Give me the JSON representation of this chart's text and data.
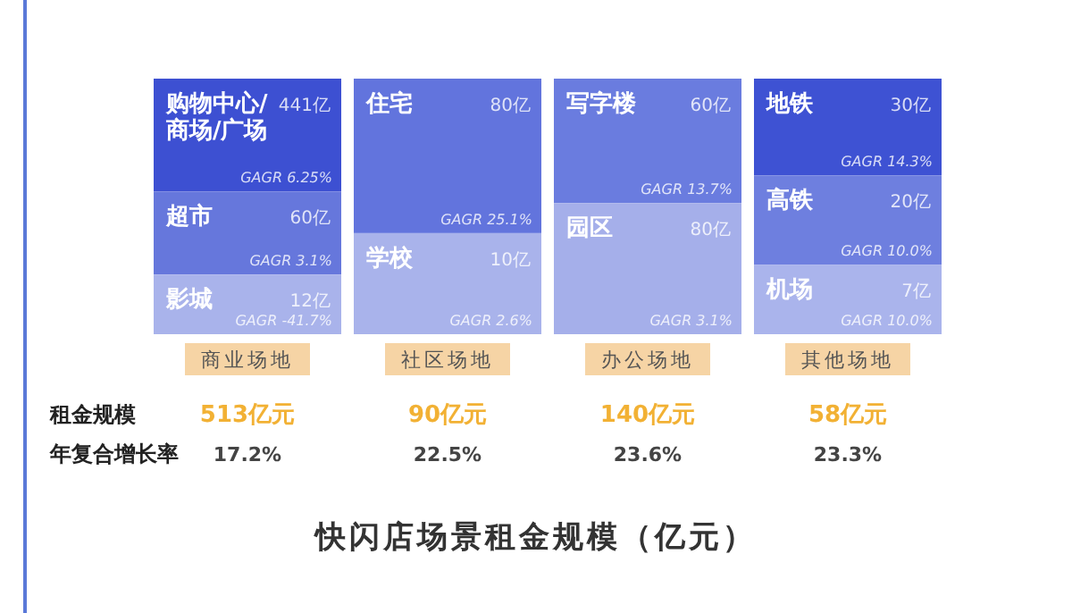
{
  "chart_data": [
    {
      "type": "other",
      "xlabel": "商业场地",
      "categories": [
        "购物中心/商场/广场",
        "超市",
        "影城"
      ],
      "values": [
        441,
        60,
        12
      ],
      "value_labels": [
        "441亿",
        "60亿",
        "12亿"
      ],
      "colors": [
        "#3d50d2",
        "#6677dc",
        "#a9b3eb"
      ],
      "annotations": [
        "GAGR 6.25%",
        "GAGR 3.1%",
        "GAGR -41.7%"
      ]
    },
    {
      "type": "other",
      "xlabel": "社区场地",
      "categories": [
        "住宅",
        "学校"
      ],
      "values": [
        80,
        10
      ],
      "value_labels": [
        "80亿",
        "10亿"
      ],
      "colors": [
        "#6274dd",
        "#a9b3eb"
      ],
      "annotations": [
        "GAGR 25.1%",
        "GAGR 2.6%"
      ]
    },
    {
      "type": "other",
      "xlabel": "办公场地",
      "categories": [
        "写字楼",
        "园区"
      ],
      "values": [
        60,
        80
      ],
      "value_labels": [
        "60亿",
        "80亿"
      ],
      "colors": [
        "#6a7cdf",
        "#a5afea"
      ],
      "annotations": [
        "GAGR 13.7%",
        "GAGR 3.1%"
      ]
    },
    {
      "type": "other",
      "xlabel": "其他场地",
      "categories": [
        "地铁",
        "高铁",
        "机场"
      ],
      "values": [
        30,
        20,
        7
      ],
      "value_labels": [
        "30亿",
        "20亿",
        "7亿"
      ],
      "colors": [
        "#3e52d3",
        "#6e7fdf",
        "#aab4ec"
      ],
      "annotations": [
        "GAGR 14.3%",
        "GAGR 10.0%",
        "GAGR 10.0%"
      ]
    },
    {
      "type": "other",
      "title": "快闪店场景租金规模（亿元）",
      "y_categories": [
        "租金规模",
        "年复合增长率"
      ],
      "colors": [
        "#f2b134",
        "#444444"
      ],
      "cell_labels": [
        [
          "513亿元",
          "90亿元",
          "140亿元",
          "58亿元"
        ],
        [
          "17.2%",
          "22.5%",
          "23.6%",
          "23.3%"
        ]
      ]
    }
  ]
}
